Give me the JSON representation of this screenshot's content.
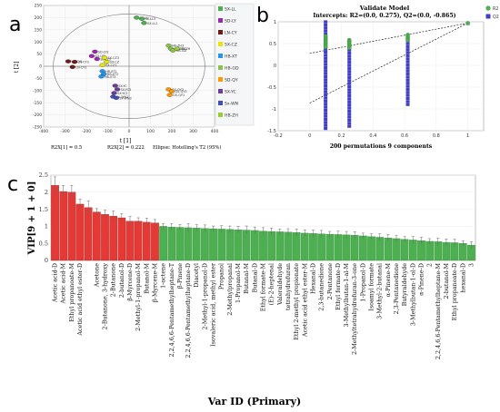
{
  "panels": {
    "a": "a",
    "b": "b",
    "c": "c"
  },
  "chart_data": [
    {
      "type": "scatter",
      "panel": "a",
      "xlabel": "t [1]",
      "ylabel": "t [2]",
      "xlim": [
        -400,
        400
      ],
      "ylim": [
        -250,
        250
      ],
      "xticks": [
        -400,
        -300,
        -200,
        -100,
        0,
        100,
        200,
        300,
        400
      ],
      "yticks": [
        -250,
        -200,
        -150,
        -100,
        -50,
        0,
        50,
        100,
        150,
        200,
        250
      ],
      "footnotes": [
        "R2X[1] = 0.5",
        "R2X[2] = 0.222",
        "Ellipse: Hotelling's T2 (95%)"
      ],
      "ellipse": {
        "rx": 355,
        "ry": 215
      },
      "series": [
        {
          "name": "SX-LL",
          "color": "#4caf50",
          "points": [
            {
              "x": 35,
              "y": 200,
              "label": "SX-LL"
            },
            {
              "x": 60,
              "y": 195,
              "label": "SX-LL3"
            },
            {
              "x": 70,
              "y": 178,
              "label": "SX-LL2"
            }
          ]
        },
        {
          "name": "SD-LY",
          "color": "#9c27b0",
          "points": [
            {
              "x": -160,
              "y": 60,
              "label": "SD-LY2"
            },
            {
              "x": -175,
              "y": 42,
              "label": "SD-LY1"
            },
            {
              "x": -150,
              "y": 30,
              "label": "SD-LY3"
            }
          ]
        },
        {
          "name": "LN-CY",
          "color": "#6d1b1b",
          "points": [
            {
              "x": -285,
              "y": 20,
              "label": "LN-CY1"
            },
            {
              "x": -255,
              "y": 18,
              "label": "LN-CY3"
            },
            {
              "x": -265,
              "y": -3,
              "label": "LN-CY2"
            }
          ]
        },
        {
          "name": "SX-CZ",
          "color": "#e6e600",
          "points": [
            {
              "x": -115,
              "y": 35,
              "label": "SX-CZ3"
            },
            {
              "x": -105,
              "y": 18,
              "label": "SX-CZ"
            },
            {
              "x": -125,
              "y": 5,
              "label": "SX-CZ1"
            }
          ]
        },
        {
          "name": "HB-XT",
          "color": "#2196f3",
          "points": [
            {
              "x": -125,
              "y": -20,
              "label": "HB-XT1"
            },
            {
              "x": -118,
              "y": -32,
              "label": "HB-XT2"
            },
            {
              "x": -130,
              "y": -42,
              "label": "HB-XT3"
            }
          ]
        },
        {
          "name": "HB-GD",
          "color": "#8bc34a",
          "points": [
            {
              "x": 185,
              "y": 85,
              "label": "HB-ZH3"
            },
            {
              "x": 195,
              "y": 72,
              "label": "HB-GD3"
            },
            {
              "x": 205,
              "y": 65,
              "label": "HB-GD"
            }
          ]
        },
        {
          "name": "SD-QY",
          "color": "#ff9800",
          "points": [
            {
              "x": 185,
              "y": -95,
              "label": "GS-QY2"
            },
            {
              "x": 200,
              "y": -103,
              "label": "GS-QY3"
            },
            {
              "x": 190,
              "y": -118,
              "label": "GS-QY1"
            }
          ]
        },
        {
          "name": "SX-YC",
          "color": "#6a3d9a",
          "points": [
            {
              "x": -65,
              "y": -80,
              "label": "SX-YC"
            },
            {
              "x": -55,
              "y": -95,
              "label": "SX-YC3"
            },
            {
              "x": -70,
              "y": -110,
              "label": "SX-YC2"
            }
          ]
        },
        {
          "name": "Sx-WN",
          "color": "#3f51b5",
          "points": [
            {
              "x": -75,
              "y": -125,
              "label": "Sx-WN1"
            },
            {
              "x": -60,
              "y": -130,
              "label": "Sx-WN3"
            }
          ]
        },
        {
          "name": "HB-ZH",
          "color": "#9acd32",
          "points": [
            {
              "x": 225,
              "y": 72,
              "label": "HB-ZH"
            }
          ]
        }
      ]
    },
    {
      "type": "scatter",
      "panel": "b",
      "title": "Validate Model",
      "subtitle": "Intercepts: R2=(0.0, 0.275), Q2=(0.0, -0.865)",
      "xlabel": "200 permutations 9 components",
      "xlim": [
        -0.2,
        1.1
      ],
      "ylim": [
        -1.5,
        1.0
      ],
      "xticks": [
        -0.2,
        0,
        0.2,
        0.4,
        0.6,
        0.8,
        1
      ],
      "yticks": [
        -1.5,
        -1,
        -0.5,
        0,
        0.5,
        1
      ],
      "series": [
        {
          "name": "R2",
          "color": "#4caf50",
          "x": [
            0.1,
            0.1,
            0.1,
            0.1,
            0.1,
            0.1,
            0.1,
            0.25,
            0.25,
            0.25,
            0.25,
            0.25,
            0.25,
            0.62,
            0.62,
            0.62,
            0.62,
            1.0
          ],
          "y": [
            0.67,
            0.62,
            0.58,
            0.54,
            0.5,
            0.46,
            0.42,
            0.58,
            0.55,
            0.52,
            0.48,
            0.44,
            0.4,
            0.7,
            0.66,
            0.62,
            0.58,
            0.97
          ]
        },
        {
          "name": "Q2",
          "color": "#3f3fbf",
          "x": [
            0.1,
            0.25,
            0.62,
            1.0
          ],
          "ymin": [
            -1.45,
            -1.4,
            -0.9,
            0.96
          ],
          "ymax": [
            1.0,
            0.45,
            0.6,
            0.98
          ]
        }
      ],
      "regression_lines": [
        {
          "name": "R2",
          "intercept": 0.275,
          "end": [
            1.0,
            0.97
          ]
        },
        {
          "name": "Q2",
          "intercept": -0.865,
          "end": [
            1.0,
            0.97
          ]
        }
      ]
    },
    {
      "type": "bar",
      "panel": "c",
      "ylabel": "VIP[9 + 1 + 0]",
      "xlabel": "Var ID (Primary)",
      "ylim": [
        0,
        2.5
      ],
      "yticks": [
        0,
        0.5,
        1,
        1.5,
        2,
        2.5
      ],
      "categories": [
        "Acetic acid-D",
        "Acetic acid-M",
        "Ethyl propanoate-M",
        "Acetic acid ethyl ester-D",
        "",
        "Acetone",
        "2-Butanone, 3-hydroxy",
        "2-Butanone",
        "2-butanol-D",
        "β-Myrcene-D",
        "2-Methyl-1-propanol-M",
        "Butanol-M",
        "β-Myrcene-M",
        "1-octene",
        "2,2,4,6,6-Pentamethylheptane-T",
        "β-Pinene",
        "2,2,4,6,6-Pentamethylheptane-D",
        "Diacetyl",
        "2-Methyl-1-propanol-D",
        "Isovaleric acid, methyl ester",
        "Propanol",
        "2-Methylpropanal",
        "1-Propanol-M",
        "Butanal-M",
        "Butanal-D",
        "Ethyl formate-M",
        "(E)-2-heptenal",
        "Valeraldehyde",
        "tetrahydrofuran",
        "Ethyl 2-methyl propionate",
        "Acetic acid ethyl ester-M",
        "Hexanal-D",
        "2,3-butanedione",
        "2-Pentanone",
        "Ethyl formate-D",
        "3-Methylbutan-1-al-M",
        "2-Methyltetrahydrofuran-3-one",
        "1-Propanol-D",
        "Isoamyl formate",
        "3-Methyl-2-butanal",
        "α-Pinene-M",
        "2,3-Pentanedione",
        "Butyraldehyde",
        "3-Methylbutan-1-ol-D",
        "α-Pinene-D",
        "2",
        "2,2,4,6,6-Pentamethylheptane-M",
        "2-butanol-M",
        "Ethyl propanoate-D",
        "hexanal-D",
        "3"
      ],
      "values": [
        2.2,
        2.02,
        2.0,
        1.65,
        1.55,
        1.42,
        1.35,
        1.3,
        1.25,
        1.15,
        1.15,
        1.12,
        1.1,
        1.0,
        0.98,
        0.97,
        0.96,
        0.95,
        0.94,
        0.93,
        0.92,
        0.91,
        0.9,
        0.89,
        0.88,
        0.86,
        0.85,
        0.84,
        0.83,
        0.82,
        0.8,
        0.79,
        0.78,
        0.77,
        0.76,
        0.75,
        0.74,
        0.72,
        0.7,
        0.68,
        0.66,
        0.64,
        0.62,
        0.6,
        0.58,
        0.56,
        0.55,
        0.53,
        0.52,
        0.5,
        0.45
      ],
      "errors": [
        0.25,
        0.18,
        0.2,
        0.15,
        0.2,
        0.1,
        0.12,
        0.15,
        0.12,
        0.14,
        0.1,
        0.12,
        0.1,
        0.08,
        0.1,
        0.08,
        0.12,
        0.1,
        0.1,
        0.08,
        0.1,
        0.1,
        0.1,
        0.12,
        0.1,
        0.1,
        0.1,
        0.08,
        0.1,
        0.1,
        0.1,
        0.1,
        0.1,
        0.08,
        0.1,
        0.1,
        0.1,
        0.08,
        0.08,
        0.1,
        0.1,
        0.1,
        0.08,
        0.1,
        0.1,
        0.08,
        0.1,
        0.1,
        0.1,
        0.08,
        0.1
      ],
      "highlight_count": 13,
      "highlight_color": "#e53935",
      "base_color": "#4caf50"
    }
  ]
}
